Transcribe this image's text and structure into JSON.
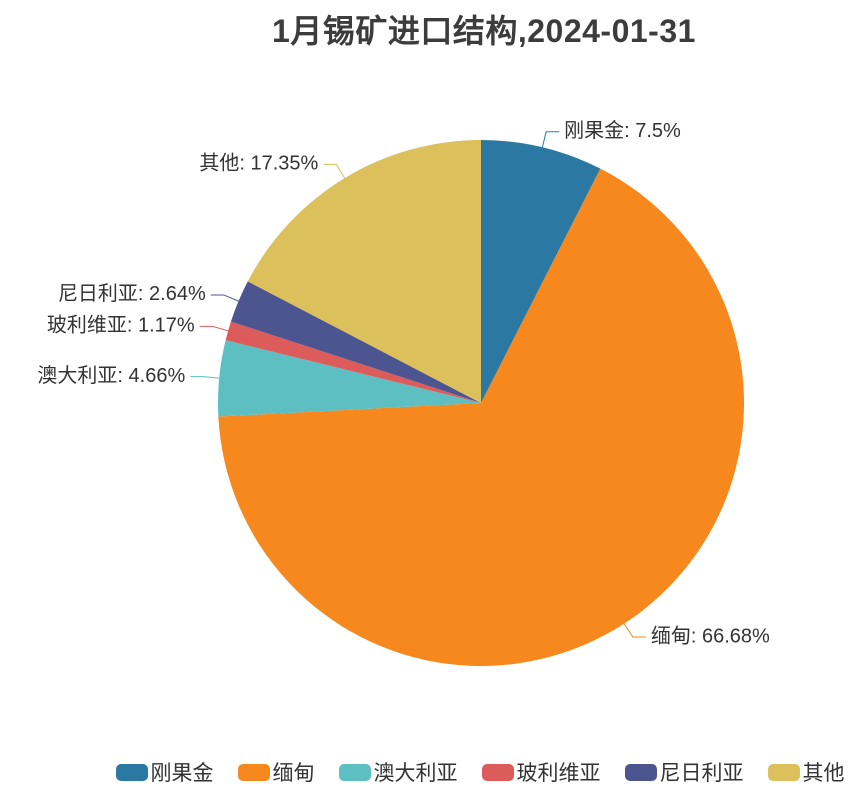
{
  "title": "1月锡矿进口结构,2024-01-31",
  "text_color": "#333333",
  "title_color": "#3c3c3c",
  "chart_data": {
    "type": "pie",
    "title": "1月锡矿进口结构,2024-01-31",
    "direction": "clockwise",
    "start_angle_deg": 0,
    "legend_position": "bottom",
    "label_format": "{name}: {value}%",
    "series": [
      {
        "name": "刚果金",
        "value": 7.5,
        "label": "刚果金: 7.5%",
        "color": "#2b78a2"
      },
      {
        "name": "缅甸",
        "value": 66.68,
        "label": "缅甸: 66.68%",
        "color": "#f6881d"
      },
      {
        "name": "澳大利亚",
        "value": 4.66,
        "label": "澳大利亚: 4.66%",
        "color": "#5dbfc1"
      },
      {
        "name": "玻利维亚",
        "value": 1.17,
        "label": "玻利维亚: 1.17%",
        "color": "#dc5c5c"
      },
      {
        "name": "尼日利亚",
        "value": 2.64,
        "label": "尼日利亚: 2.64%",
        "color": "#4d5591"
      },
      {
        "name": "其他",
        "value": 17.35,
        "label": "其他: 17.35%",
        "color": "#dcc05c"
      }
    ],
    "legend": [
      "刚果金",
      "缅甸",
      "澳大利亚",
      "玻利维亚",
      "尼日利亚",
      "其他"
    ]
  }
}
